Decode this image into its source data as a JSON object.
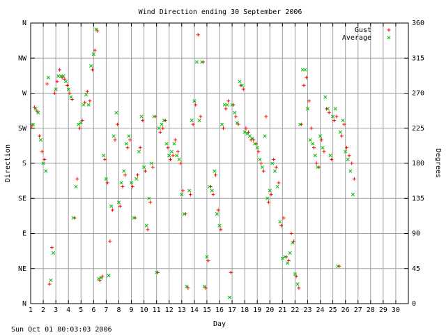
{
  "chart_data": {
    "type": "scatter",
    "title": "Wind Direction ending 30 September 2006",
    "xlabel": "Day",
    "ylabel_left": "Direction",
    "ylabel_right": "Degrees",
    "footer": "Sun Oct 01 00:03:03 2006",
    "xlim": [
      1,
      31
    ],
    "ylim": [
      0,
      360
    ],
    "x_ticks": [
      1,
      2,
      3,
      4,
      5,
      6,
      7,
      8,
      9,
      10,
      11,
      12,
      13,
      14,
      15,
      16,
      17,
      18,
      19,
      20,
      21,
      22,
      23,
      24,
      25,
      26,
      27,
      28,
      29,
      30
    ],
    "left_ticks": [
      {
        "value": 0,
        "label": "N"
      },
      {
        "value": 45,
        "label": "NE"
      },
      {
        "value": 90,
        "label": "E"
      },
      {
        "value": 135,
        "label": "SE"
      },
      {
        "value": 180,
        "label": "S"
      },
      {
        "value": 225,
        "label": "SW"
      },
      {
        "value": 270,
        "label": "W"
      },
      {
        "value": 315,
        "label": "NW"
      },
      {
        "value": 360,
        "label": "N"
      }
    ],
    "right_ticks": [
      0,
      45,
      90,
      135,
      180,
      225,
      270,
      315,
      360
    ],
    "grid": true,
    "legend_position": "top-right",
    "series": [
      {
        "name": "Gust",
        "marker": "+",
        "color": "#ff0000",
        "points": [
          [
            1.1,
            228
          ],
          [
            1.3,
            252
          ],
          [
            1.5,
            247
          ],
          [
            1.7,
            215
          ],
          [
            1.9,
            195
          ],
          [
            2.1,
            185
          ],
          [
            2.3,
            282
          ],
          [
            2.5,
            25
          ],
          [
            2.7,
            72
          ],
          [
            2.9,
            270
          ],
          [
            3.1,
            285
          ],
          [
            3.3,
            300
          ],
          [
            3.5,
            290
          ],
          [
            3.7,
            288
          ],
          [
            3.9,
            280
          ],
          [
            4.1,
            270
          ],
          [
            4.3,
            262
          ],
          [
            4.5,
            110
          ],
          [
            4.7,
            160
          ],
          [
            4.9,
            225
          ],
          [
            5.1,
            235
          ],
          [
            5.3,
            258
          ],
          [
            5.5,
            272
          ],
          [
            5.7,
            260
          ],
          [
            5.9,
            300
          ],
          [
            6.1,
            325
          ],
          [
            6.3,
            350
          ],
          [
            6.5,
            30
          ],
          [
            6.7,
            35
          ],
          [
            6.9,
            185
          ],
          [
            7.1,
            155
          ],
          [
            7.3,
            80
          ],
          [
            7.5,
            120
          ],
          [
            7.7,
            210
          ],
          [
            7.9,
            230
          ],
          [
            8.1,
            125
          ],
          [
            8.3,
            150
          ],
          [
            8.5,
            165
          ],
          [
            8.7,
            200
          ],
          [
            8.9,
            210
          ],
          [
            9.1,
            150
          ],
          [
            9.3,
            110
          ],
          [
            9.5,
            165
          ],
          [
            9.7,
            200
          ],
          [
            9.9,
            235
          ],
          [
            10.1,
            170
          ],
          [
            10.3,
            95
          ],
          [
            10.5,
            130
          ],
          [
            10.7,
            175
          ],
          [
            10.9,
            240
          ],
          [
            11.1,
            40
          ],
          [
            11.3,
            220
          ],
          [
            11.5,
            225
          ],
          [
            11.7,
            235
          ],
          [
            11.9,
            200
          ],
          [
            12.1,
            185
          ],
          [
            12.3,
            190
          ],
          [
            12.5,
            210
          ],
          [
            12.7,
            195
          ],
          [
            12.9,
            180
          ],
          [
            13.1,
            145
          ],
          [
            13.3,
            115
          ],
          [
            13.5,
            20
          ],
          [
            13.7,
            140
          ],
          [
            13.9,
            230
          ],
          [
            14.1,
            255
          ],
          [
            14.3,
            345
          ],
          [
            14.5,
            240
          ],
          [
            14.7,
            310
          ],
          [
            14.9,
            20
          ],
          [
            15.1,
            55
          ],
          [
            15.3,
            150
          ],
          [
            15.5,
            140
          ],
          [
            15.7,
            165
          ],
          [
            15.9,
            120
          ],
          [
            16.1,
            95
          ],
          [
            16.3,
            225
          ],
          [
            16.5,
            250
          ],
          [
            16.7,
            260
          ],
          [
            16.9,
            40
          ],
          [
            17.1,
            255
          ],
          [
            17.3,
            240
          ],
          [
            17.5,
            230
          ],
          [
            17.7,
            280
          ],
          [
            17.9,
            275
          ],
          [
            18.1,
            225
          ],
          [
            18.3,
            220
          ],
          [
            18.5,
            210
          ],
          [
            18.7,
            210
          ],
          [
            18.9,
            205
          ],
          [
            19.1,
            195
          ],
          [
            19.3,
            180
          ],
          [
            19.5,
            170
          ],
          [
            19.7,
            240
          ],
          [
            19.9,
            130
          ],
          [
            20.1,
            140
          ],
          [
            20.3,
            185
          ],
          [
            20.5,
            175
          ],
          [
            20.7,
            155
          ],
          [
            20.9,
            100
          ],
          [
            21.1,
            110
          ],
          [
            21.3,
            60
          ],
          [
            21.5,
            55
          ],
          [
            21.7,
            90
          ],
          [
            21.9,
            80
          ],
          [
            22.1,
            35
          ],
          [
            22.3,
            20
          ],
          [
            22.5,
            230
          ],
          [
            22.7,
            280
          ],
          [
            22.9,
            290
          ],
          [
            23.1,
            260
          ],
          [
            23.3,
            225
          ],
          [
            23.5,
            200
          ],
          [
            23.7,
            180
          ],
          [
            23.9,
            175
          ],
          [
            24.1,
            210
          ],
          [
            24.3,
            195
          ],
          [
            24.5,
            250
          ],
          [
            24.7,
            245
          ],
          [
            24.9,
            185
          ],
          [
            25.1,
            235
          ],
          [
            25.3,
            240
          ],
          [
            25.5,
            48
          ],
          [
            25.7,
            215
          ],
          [
            25.9,
            230
          ],
          [
            26.1,
            200
          ],
          [
            26.3,
            190
          ],
          [
            26.5,
            180
          ],
          [
            26.7,
            160
          ]
        ]
      },
      {
        "name": "Average",
        "marker": "x",
        "color": "#00bb00",
        "points": [
          [
            1.2,
            230
          ],
          [
            1.4,
            250
          ],
          [
            1.6,
            245
          ],
          [
            1.8,
            210
          ],
          [
            2.0,
            180
          ],
          [
            2.2,
            170
          ],
          [
            2.4,
            290
          ],
          [
            2.6,
            30
          ],
          [
            2.8,
            65
          ],
          [
            3.0,
            275
          ],
          [
            3.2,
            292
          ],
          [
            3.4,
            292
          ],
          [
            3.6,
            292
          ],
          [
            3.8,
            285
          ],
          [
            4.0,
            275
          ],
          [
            4.2,
            265
          ],
          [
            4.4,
            110
          ],
          [
            4.6,
            150
          ],
          [
            4.8,
            230
          ],
          [
            5.0,
            232
          ],
          [
            5.2,
            255
          ],
          [
            5.4,
            268
          ],
          [
            5.6,
            255
          ],
          [
            5.8,
            305
          ],
          [
            6.0,
            320
          ],
          [
            6.2,
            352
          ],
          [
            6.4,
            32
          ],
          [
            6.6,
            33
          ],
          [
            6.8,
            190
          ],
          [
            7.0,
            160
          ],
          [
            7.2,
            36
          ],
          [
            7.4,
            125
          ],
          [
            7.6,
            215
          ],
          [
            7.8,
            245
          ],
          [
            8.0,
            130
          ],
          [
            8.2,
            155
          ],
          [
            8.4,
            170
          ],
          [
            8.6,
            205
          ],
          [
            8.8,
            215
          ],
          [
            9.0,
            155
          ],
          [
            9.2,
            110
          ],
          [
            9.4,
            160
          ],
          [
            9.6,
            195
          ],
          [
            9.8,
            240
          ],
          [
            10.0,
            175
          ],
          [
            10.2,
            100
          ],
          [
            10.4,
            135
          ],
          [
            10.6,
            180
          ],
          [
            10.8,
            240
          ],
          [
            11.0,
            40
          ],
          [
            11.2,
            225
          ],
          [
            11.4,
            230
          ],
          [
            11.6,
            235
          ],
          [
            11.8,
            205
          ],
          [
            12.0,
            190
          ],
          [
            12.2,
            195
          ],
          [
            12.4,
            205
          ],
          [
            12.6,
            190
          ],
          [
            12.8,
            185
          ],
          [
            13.0,
            140
          ],
          [
            13.2,
            115
          ],
          [
            13.4,
            22
          ],
          [
            13.6,
            145
          ],
          [
            13.8,
            235
          ],
          [
            14.0,
            260
          ],
          [
            14.2,
            310
          ],
          [
            14.4,
            235
          ],
          [
            14.6,
            310
          ],
          [
            14.8,
            22
          ],
          [
            15.0,
            60
          ],
          [
            15.2,
            150
          ],
          [
            15.4,
            145
          ],
          [
            15.6,
            170
          ],
          [
            15.8,
            115
          ],
          [
            16.0,
            100
          ],
          [
            16.2,
            230
          ],
          [
            16.4,
            255
          ],
          [
            16.6,
            255
          ],
          [
            16.8,
            8
          ],
          [
            17.0,
            255
          ],
          [
            17.2,
            245
          ],
          [
            17.4,
            232
          ],
          [
            17.6,
            285
          ],
          [
            17.8,
            280
          ],
          [
            18.0,
            220
          ],
          [
            18.2,
            218
          ],
          [
            18.4,
            215
          ],
          [
            18.6,
            212
          ],
          [
            18.8,
            205
          ],
          [
            19.0,
            200
          ],
          [
            19.2,
            185
          ],
          [
            19.4,
            175
          ],
          [
            19.6,
            215
          ],
          [
            19.8,
            135
          ],
          [
            20.0,
            145
          ],
          [
            20.2,
            180
          ],
          [
            20.4,
            170
          ],
          [
            20.6,
            150
          ],
          [
            20.8,
            105
          ],
          [
            21.0,
            58
          ],
          [
            21.2,
            60
          ],
          [
            21.4,
            52
          ],
          [
            21.6,
            65
          ],
          [
            21.8,
            78
          ],
          [
            22.0,
            38
          ],
          [
            22.2,
            25
          ],
          [
            22.4,
            230
          ],
          [
            22.6,
            300
          ],
          [
            22.8,
            300
          ],
          [
            23.0,
            250
          ],
          [
            23.2,
            210
          ],
          [
            23.4,
            205
          ],
          [
            23.6,
            190
          ],
          [
            23.8,
            175
          ],
          [
            24.0,
            215
          ],
          [
            24.2,
            200
          ],
          [
            24.4,
            265
          ],
          [
            24.6,
            250
          ],
          [
            24.8,
            190
          ],
          [
            25.0,
            240
          ],
          [
            25.2,
            250
          ],
          [
            25.4,
            48
          ],
          [
            25.6,
            220
          ],
          [
            25.8,
            235
          ],
          [
            26.0,
            195
          ],
          [
            26.2,
            185
          ],
          [
            26.4,
            170
          ],
          [
            26.6,
            140
          ]
        ]
      }
    ]
  }
}
